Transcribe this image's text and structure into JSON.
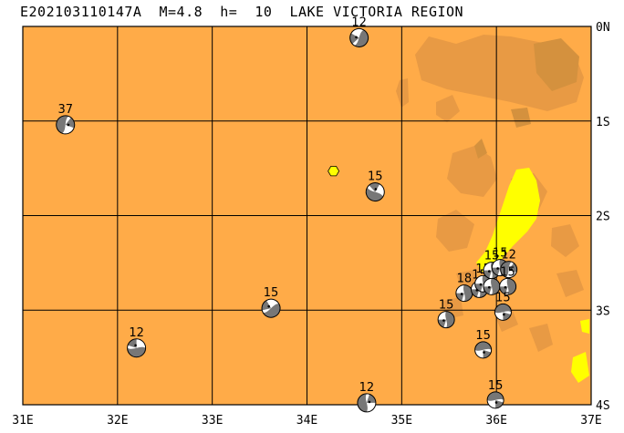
{
  "title": "E202103110147A  M=4.8  h=  10  LAKE VICTORIA REGION",
  "map": {
    "lon_range": [
      31,
      37
    ],
    "lat_range": [
      0,
      -4
    ],
    "grid": true,
    "lon_ticks": [
      {
        "lon": 31,
        "label": "31E"
      },
      {
        "lon": 32,
        "label": "32E"
      },
      {
        "lon": 33,
        "label": "33E"
      },
      {
        "lon": 34,
        "label": "34E"
      },
      {
        "lon": 35,
        "label": "35E"
      },
      {
        "lon": 36,
        "label": "36E"
      },
      {
        "lon": 37,
        "label": "37E"
      }
    ],
    "lat_ticks": [
      {
        "lat": 0,
        "label": "0N"
      },
      {
        "lat": -1,
        "label": "1S"
      },
      {
        "lat": -2,
        "label": "2S"
      },
      {
        "lat": -3,
        "label": "3S"
      },
      {
        "lat": -4,
        "label": "4S"
      }
    ],
    "colors": {
      "background": "#ffab48",
      "highland": "#e89a44",
      "high_relief": "#d4913e",
      "yellow_zone": "#ffff00",
      "grid": "#000000"
    },
    "epicenter": {
      "lon": 34.28,
      "lat": -1.53,
      "marker": "yellow-hexagon"
    }
  },
  "events": [
    {
      "lon": 31.45,
      "lat": -1.04,
      "depth": "37",
      "orient": 200
    },
    {
      "lon": 34.55,
      "lat": -0.12,
      "depth": "12",
      "orient": 30
    },
    {
      "lon": 34.72,
      "lat": -1.75,
      "depth": "15",
      "orient": 120
    },
    {
      "lon": 33.62,
      "lat": -2.98,
      "depth": "15",
      "orient": 60
    },
    {
      "lon": 32.2,
      "lat": -3.4,
      "depth": "12",
      "orient": 90
    },
    {
      "lon": 34.63,
      "lat": -3.98,
      "depth": "12",
      "orient": 180
    },
    {
      "lon": 35.47,
      "lat": -3.1,
      "depth": "15",
      "orient": 0
    },
    {
      "lon": 35.66,
      "lat": -2.82,
      "depth": "18",
      "orient": 0
    },
    {
      "lon": 35.82,
      "lat": -2.78,
      "depth": "15",
      "orient": 0
    },
    {
      "lon": 35.86,
      "lat": -2.72,
      "depth": "15",
      "orient": 0
    },
    {
      "lon": 35.95,
      "lat": -2.75,
      "depth": "15",
      "orient": 0
    },
    {
      "lon": 35.95,
      "lat": -2.58,
      "depth": "15",
      "orient": 0
    },
    {
      "lon": 36.04,
      "lat": -2.55,
      "depth": "15",
      "orient": 0
    },
    {
      "lon": 36.13,
      "lat": -2.57,
      "depth": "12",
      "orient": 200
    },
    {
      "lon": 36.12,
      "lat": -2.75,
      "depth": "15",
      "orient": 0
    },
    {
      "lon": 36.07,
      "lat": -3.02,
      "depth": "15",
      "orient": 270
    },
    {
      "lon": 35.86,
      "lat": -3.42,
      "depth": "15",
      "orient": 270
    },
    {
      "lon": 35.99,
      "lat": -3.95,
      "depth": "15",
      "orient": 270
    }
  ]
}
